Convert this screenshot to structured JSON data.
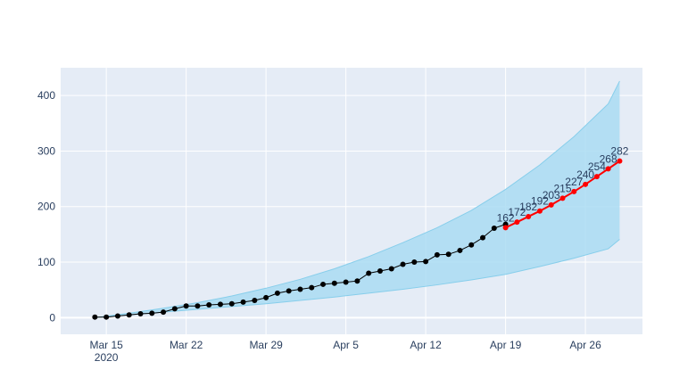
{
  "chart_data": {
    "type": "line",
    "title": "",
    "xlabel": "",
    "ylabel": "",
    "x_axis": {
      "type": "date",
      "range": [
        "2020-03-11",
        "2020-05-01"
      ],
      "ticks": [
        {
          "date": "2020-03-15",
          "label": "Mar 15",
          "sublabel": "2020"
        },
        {
          "date": "2020-03-22",
          "label": "Mar 22",
          "sublabel": ""
        },
        {
          "date": "2020-03-29",
          "label": "Mar 29",
          "sublabel": ""
        },
        {
          "date": "2020-04-05",
          "label": "Apr 5",
          "sublabel": ""
        },
        {
          "date": "2020-04-12",
          "label": "Apr 12",
          "sublabel": ""
        },
        {
          "date": "2020-04-19",
          "label": "Apr 19",
          "sublabel": ""
        },
        {
          "date": "2020-04-26",
          "label": "Apr 26",
          "sublabel": ""
        }
      ]
    },
    "y_axis": {
      "range": [
        -30,
        450
      ],
      "ticks": [
        0,
        100,
        200,
        300,
        400
      ]
    },
    "grid": true,
    "legend": "none",
    "colors": {
      "plot_bg": "#e5ecf6",
      "grid": "#ffffff",
      "band_fill": "#aadcf2",
      "band_line": "#87ceeb",
      "observed": "#000000",
      "forecast": "#ff0000",
      "tick_text": "#2a3f5f"
    },
    "band": {
      "x": [
        "2020-03-14",
        "2020-03-17",
        "2020-03-20",
        "2020-03-23",
        "2020-03-26",
        "2020-03-29",
        "2020-04-01",
        "2020-04-04",
        "2020-04-07",
        "2020-04-10",
        "2020-04-13",
        "2020-04-16",
        "2020-04-19",
        "2020-04-22",
        "2020-04-25",
        "2020-04-28",
        "2020-04-29"
      ],
      "upper": [
        0,
        8,
        17,
        27,
        39,
        53,
        69,
        88,
        110,
        135,
        162,
        193,
        231,
        275,
        326,
        385,
        426
      ],
      "lower": [
        0,
        5,
        10,
        15,
        20,
        25,
        31,
        37,
        44,
        51,
        59,
        68,
        78,
        92,
        107,
        124,
        141
      ]
    },
    "series": [
      {
        "role": "observed",
        "x": [
          "2020-03-14",
          "2020-03-15",
          "2020-03-16",
          "2020-03-17",
          "2020-03-18",
          "2020-03-19",
          "2020-03-20",
          "2020-03-21",
          "2020-03-22",
          "2020-03-23",
          "2020-03-24",
          "2020-03-25",
          "2020-03-26",
          "2020-03-27",
          "2020-03-28",
          "2020-03-29",
          "2020-03-30",
          "2020-03-31",
          "2020-04-01",
          "2020-04-02",
          "2020-04-03",
          "2020-04-04",
          "2020-04-05",
          "2020-04-06",
          "2020-04-07",
          "2020-04-08",
          "2020-04-09",
          "2020-04-10",
          "2020-04-11",
          "2020-04-12",
          "2020-04-13",
          "2020-04-14",
          "2020-04-15",
          "2020-04-16",
          "2020-04-17",
          "2020-04-18",
          "2020-04-19"
        ],
        "values": [
          1,
          1,
          3,
          5,
          7,
          8,
          10,
          16,
          21,
          21,
          23,
          24,
          25,
          28,
          31,
          36,
          44,
          48,
          51,
          54,
          60,
          62,
          64,
          66,
          80,
          84,
          88,
          96,
          100,
          101,
          113,
          114,
          121,
          131,
          144,
          161,
          168
        ]
      },
      {
        "role": "forecast",
        "x": [
          "2020-04-19",
          "2020-04-20",
          "2020-04-21",
          "2020-04-22",
          "2020-04-23",
          "2020-04-24",
          "2020-04-25",
          "2020-04-26",
          "2020-04-27",
          "2020-04-28",
          "2020-04-29"
        ],
        "values": [
          162,
          172,
          182,
          192,
          203,
          215,
          227,
          240,
          254,
          268,
          282
        ],
        "data_labels": [
          "162",
          "172",
          "182",
          "192",
          "203",
          "215",
          "227",
          "240",
          "254",
          "268",
          "282"
        ]
      }
    ]
  }
}
